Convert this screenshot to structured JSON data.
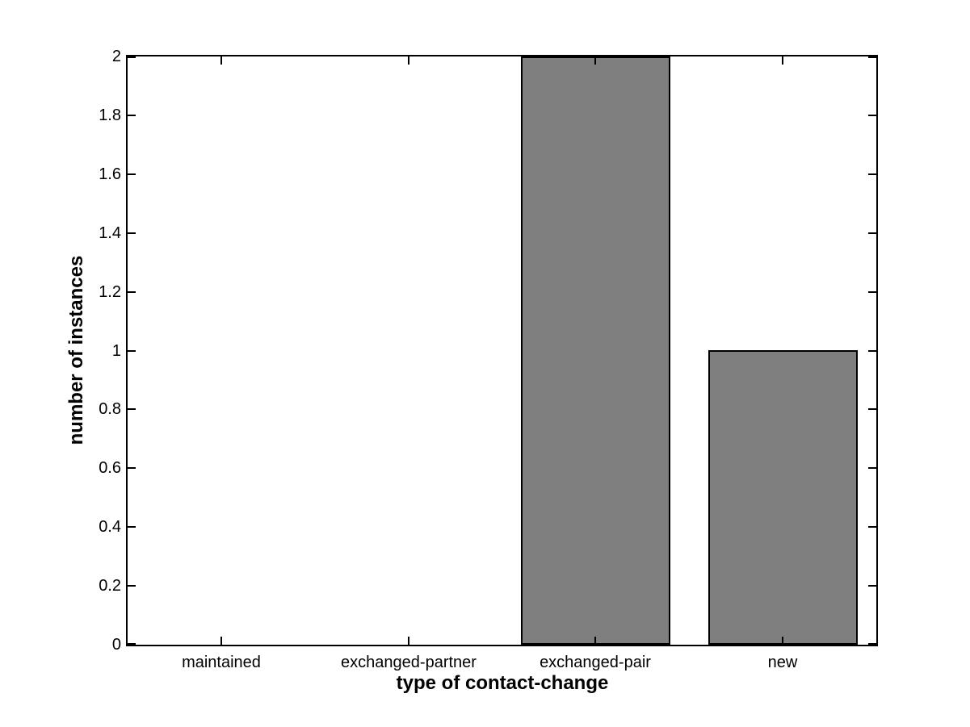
{
  "chart_data": {
    "type": "bar",
    "categories": [
      "maintained",
      "exchanged-partner",
      "exchanged-pair",
      "new"
    ],
    "values": [
      0,
      0,
      2,
      1
    ],
    "title": "",
    "xlabel": "type of contact-change",
    "ylabel": "number of instances",
    "ylim": [
      0,
      2
    ],
    "yticks": {
      "values": [
        0,
        0.2,
        0.4,
        0.6,
        0.8,
        1,
        1.2,
        1.4,
        1.6,
        1.8,
        2
      ],
      "labels": [
        "0",
        "0.2",
        "0.4",
        "0.6",
        "0.8",
        "1",
        "1.2",
        "1.4",
        "1.6",
        "1.8",
        "2"
      ]
    },
    "bar_width_fraction": 0.8,
    "bar_color": "#7f7f7f",
    "bar_edge_color": "#000000",
    "axis_color": "#000000",
    "plot_background": "#ffffff",
    "figure_background": "#ffffff",
    "grid": false,
    "legend_position": "none"
  }
}
